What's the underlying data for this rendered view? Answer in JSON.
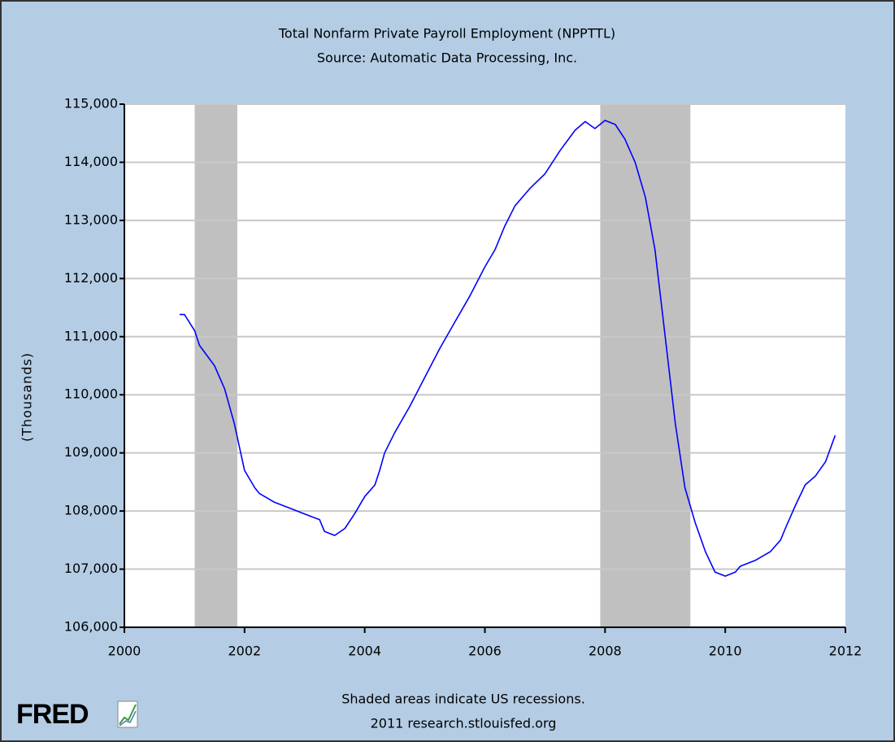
{
  "chart_data": {
    "type": "line",
    "title": "Total Nonfarm Private Payroll Employment (NPPTTL)",
    "subtitle": "Source: Automatic Data Processing, Inc.",
    "ylabel": "(Thousands)",
    "annotations": [
      "Shaded areas indicate US recessions.",
      "2011 research.stlouisfed.org"
    ],
    "logo": "FRED",
    "color": "#0000ff",
    "recession_color": "#c0c0c0",
    "recessions": [
      [
        2001.17,
        2001.88
      ],
      [
        2007.92,
        2009.42
      ]
    ],
    "x": [
      2000.92,
      2001.0,
      2001.17,
      2001.25,
      2001.5,
      2001.67,
      2001.83,
      2002.0,
      2002.17,
      2002.25,
      2002.5,
      2002.75,
      2003.0,
      2003.25,
      2003.33,
      2003.5,
      2003.67,
      2003.83,
      2004.0,
      2004.17,
      2004.25,
      2004.33,
      2004.5,
      2004.75,
      2005.0,
      2005.25,
      2005.5,
      2005.75,
      2006.0,
      2006.17,
      2006.33,
      2006.5,
      2006.75,
      2007.0,
      2007.25,
      2007.5,
      2007.67,
      2007.83,
      2008.0,
      2008.17,
      2008.33,
      2008.5,
      2008.67,
      2008.83,
      2009.0,
      2009.17,
      2009.33,
      2009.5,
      2009.67,
      2009.83,
      2010.0,
      2010.17,
      2010.25,
      2010.5,
      2010.75,
      2010.92,
      2011.0,
      2011.17,
      2011.33,
      2011.5,
      2011.67,
      2011.83
    ],
    "values": [
      111380,
      111380,
      111100,
      110850,
      110500,
      110100,
      109500,
      108700,
      108400,
      108300,
      108150,
      108050,
      107950,
      107850,
      107650,
      107580,
      107700,
      107950,
      108250,
      108450,
      108700,
      109000,
      109350,
      109800,
      110300,
      110800,
      111250,
      111700,
      112200,
      112500,
      112900,
      113250,
      113550,
      113800,
      114200,
      114550,
      114700,
      114580,
      114720,
      114650,
      114400,
      114000,
      113400,
      112500,
      111000,
      109500,
      108400,
      107800,
      107300,
      106950,
      106880,
      106950,
      107050,
      107150,
      107300,
      107500,
      107700,
      108100,
      108450,
      108600,
      108850,
      109300
    ],
    "xlim": [
      2000,
      2012
    ],
    "xticks": [
      2000,
      2002,
      2004,
      2006,
      2008,
      2010,
      2012
    ],
    "ylim": [
      106000,
      115000
    ],
    "yticks": [
      {
        "value": 106000,
        "label": "106,000"
      },
      {
        "value": 107000,
        "label": "107,000"
      },
      {
        "value": 108000,
        "label": "108,000"
      },
      {
        "value": 109000,
        "label": "109,000"
      },
      {
        "value": 110000,
        "label": "110,000"
      },
      {
        "value": 111000,
        "label": "111,000"
      },
      {
        "value": 112000,
        "label": "112,000"
      },
      {
        "value": 113000,
        "label": "113,000"
      },
      {
        "value": 114000,
        "label": "114,000"
      },
      {
        "value": 115000,
        "label": "115,000"
      }
    ],
    "grid": true
  }
}
